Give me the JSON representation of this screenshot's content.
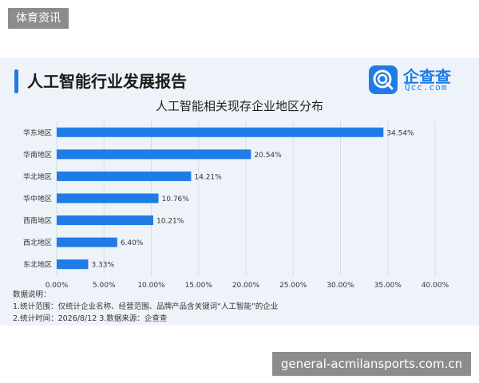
{
  "tag": "体育资讯",
  "header": {
    "title": "人工智能行业发展报告",
    "brand_name": "企查查",
    "brand_sub": "Qcc.com",
    "accent_color": "#1f7ce6"
  },
  "notes": {
    "heading": "数据说明：",
    "line1": "1.统计范围：仅统计企业名称、经营范围、品牌产品含关键词“人工智能”的企业",
    "line2": "2.统计时间：2026/8/12 3.数据来源：企查查"
  },
  "footer_link": "general-acmilansports.com.cn",
  "chart_data": {
    "type": "bar",
    "orientation": "horizontal",
    "title": "人工智能相关现存企业地区分布",
    "categories": [
      "华东地区",
      "华南地区",
      "华北地区",
      "华中地区",
      "西南地区",
      "西北地区",
      "东北地区"
    ],
    "values": [
      34.54,
      20.54,
      14.21,
      10.76,
      10.21,
      6.4,
      3.33
    ],
    "value_labels": [
      "34.54%",
      "20.54%",
      "14.21%",
      "10.76%",
      "10.21%",
      "6.40%",
      "3.33%"
    ],
    "xlim": [
      0,
      40
    ],
    "xticks": [
      "0.00%",
      "5.00%",
      "10.00%",
      "15.00%",
      "20.00%",
      "25.00%",
      "30.00%",
      "35.00%",
      "40.00%"
    ],
    "grid": true,
    "bar_color": "#1f7ce6"
  }
}
